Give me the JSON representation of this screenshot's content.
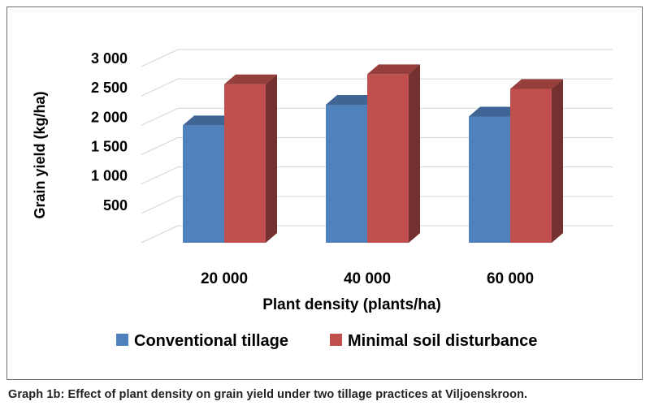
{
  "caption": "Graph 1b: Effect of plant density on grain yield under two tillage practices at Viljoenskroon.",
  "chart_data": {
    "type": "bar",
    "style": "3d-clustered-column",
    "title": "",
    "xlabel": "Plant density (plants/ha)",
    "ylabel": "Grain yield (kg/ha)",
    "categories": [
      "20 000",
      "40 000",
      "60 000"
    ],
    "yticks": [
      0,
      500,
      1000,
      1500,
      2000,
      2500,
      3000
    ],
    "ytick_labels": [
      "",
      "500",
      "1 000",
      "1 500",
      "2 000",
      "2 500",
      "3 000"
    ],
    "ylim": [
      0,
      3000
    ],
    "grid": true,
    "legend_position": "bottom",
    "series": [
      {
        "name": "Conventional tillage",
        "color": "#4F81BD",
        "values": [
          2000,
          2350,
          2150
        ]
      },
      {
        "name": "Minimal soil disturbance",
        "color": "#C0504D",
        "values": [
          2700,
          2870,
          2620
        ]
      }
    ]
  }
}
